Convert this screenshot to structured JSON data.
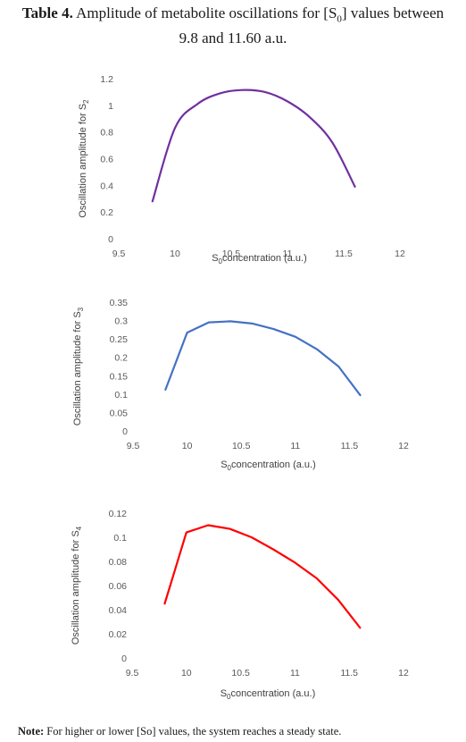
{
  "title": {
    "label": "Table 4.",
    "text_line1": "Amplitude of metabolite oscillations for [S",
    "text_sub": "0",
    "text_line1_end": "] values between",
    "text_line2": "9.8 and 11.60 a.u."
  },
  "note": {
    "label": "Note:",
    "text": "For higher or lower [So] values, the system reaches a steady state."
  },
  "chart_data": [
    {
      "type": "line",
      "color": "#7030a0",
      "xlabel": "S0concentration (a.u.)",
      "xlabel_main": "S",
      "xlabel_sub": "0",
      "xlabel_rest": "concentration (a.u.)",
      "ylabel": "Oscillation amplitude for S2",
      "ylabel_main": "Oscillation amplitude for S",
      "ylabel_sub": "2",
      "xlim": [
        9.5,
        12
      ],
      "ylim": [
        0,
        1.2
      ],
      "x_ticks": [
        "9.5",
        "10",
        "10.5",
        "11",
        "11.5",
        "12"
      ],
      "y_ticks": [
        "0",
        "0.2",
        "0.4",
        "0.6",
        "0.8",
        "1",
        "1.2"
      ],
      "grid": false,
      "smooth": true,
      "series": [
        {
          "x": [
            9.8,
            10.0,
            10.2,
            10.4,
            10.6,
            10.8,
            11.0,
            11.2,
            11.4,
            11.6
          ],
          "values": [
            0.28,
            0.83,
            1.01,
            1.09,
            1.115,
            1.1,
            1.03,
            0.91,
            0.72,
            0.39
          ]
        }
      ]
    },
    {
      "type": "line",
      "color": "#4472c4",
      "xlabel": "S0concentration (a.u.)",
      "xlabel_main": "S",
      "xlabel_sub": "0",
      "xlabel_rest": "concentration (a.u.)",
      "ylabel": "Oscillation amplitude for S3",
      "ylabel_main": "Oscillation amplitude for S",
      "ylabel_sub": "3",
      "xlim": [
        9.5,
        12
      ],
      "ylim": [
        0,
        0.35
      ],
      "x_ticks": [
        "9.5",
        "10",
        "10.5",
        "11",
        "11.5",
        "12"
      ],
      "y_ticks": [
        "0",
        "0.05",
        "0.1",
        "0.15",
        "0.2",
        "0.25",
        "0.3",
        "0.35"
      ],
      "grid": false,
      "smooth": false,
      "series": [
        {
          "x": [
            9.8,
            10.0,
            10.2,
            10.4,
            10.6,
            10.8,
            11.0,
            11.2,
            11.4,
            11.6
          ],
          "values": [
            0.112,
            0.267,
            0.295,
            0.298,
            0.292,
            0.277,
            0.256,
            0.222,
            0.175,
            0.097
          ]
        }
      ]
    },
    {
      "type": "line",
      "color": "#ff0000",
      "xlabel": "S0concentration (a.u.)",
      "xlabel_main": "S",
      "xlabel_sub": "0",
      "xlabel_rest": "concentration (a.u.)",
      "ylabel": "Oscillation amplitude for S4",
      "ylabel_main": "Oscillation amplitude for S",
      "ylabel_sub": "4",
      "xlim": [
        9.5,
        12
      ],
      "ylim": [
        0,
        0.12
      ],
      "x_ticks": [
        "9.5",
        "10",
        "10.5",
        "11",
        "11.5",
        "12"
      ],
      "y_ticks": [
        "0",
        "0.02",
        "0.04",
        "0.06",
        "0.08",
        "0.1",
        "0.12"
      ],
      "grid": false,
      "smooth": false,
      "series": [
        {
          "x": [
            9.8,
            10.0,
            10.2,
            10.4,
            10.6,
            10.8,
            11.0,
            11.2,
            11.4,
            11.6
          ],
          "values": [
            0.045,
            0.104,
            0.11,
            0.107,
            0.1,
            0.09,
            0.079,
            0.066,
            0.048,
            0.025
          ]
        }
      ]
    }
  ]
}
